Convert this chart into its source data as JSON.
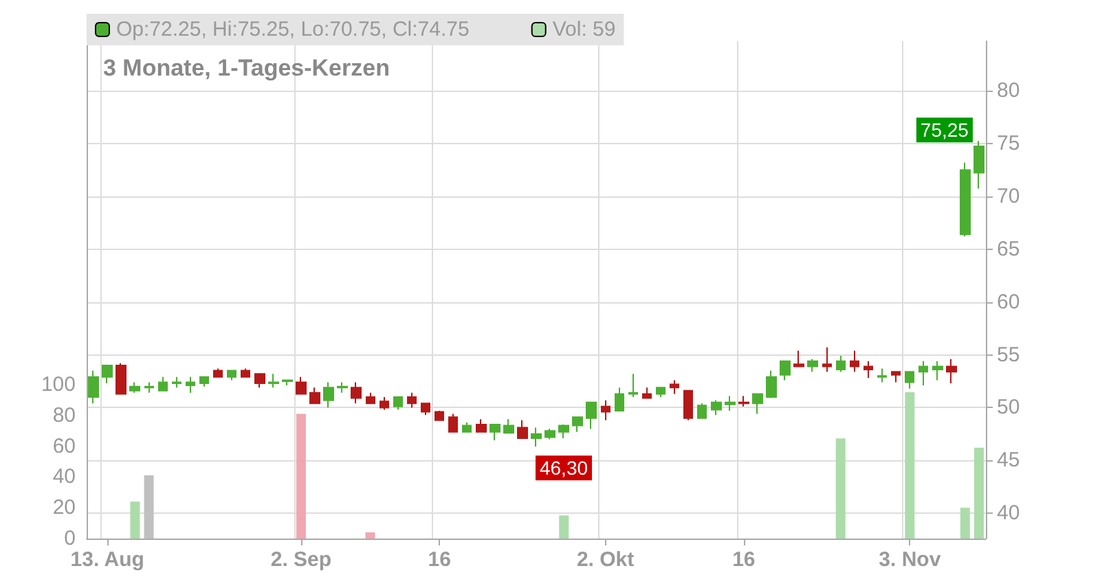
{
  "chart_data": {
    "type": "candlestick",
    "title": "3 Monate, 1-Tages-Kerzen",
    "categories": [
      null,
      "13. Aug",
      null,
      null,
      null,
      null,
      null,
      null,
      null,
      null,
      null,
      null,
      null,
      null,
      null,
      "2. Sep",
      null,
      null,
      null,
      null,
      null,
      null,
      null,
      null,
      null,
      "16",
      null,
      null,
      null,
      null,
      null,
      null,
      null,
      null,
      null,
      null,
      null,
      "2. Okt",
      null,
      null,
      null,
      null,
      null,
      null,
      null,
      null,
      null,
      "16",
      null,
      null,
      null,
      null,
      null,
      null,
      null,
      null,
      null,
      null,
      null,
      "3. Nov",
      null,
      null,
      null,
      null,
      null
    ],
    "series": [
      {
        "name": "Op:72.25, Hi:75.25, Lo:70.75, Cl:74.75",
        "color": "#4caf32",
        "ohlc": [
          [
            51.0,
            53.5,
            50.4,
            52.9
          ],
          [
            52.9,
            54.0,
            52.3,
            54.0
          ],
          [
            54.0,
            54.2,
            51.3,
            51.3
          ],
          [
            51.6,
            52.4,
            51.4,
            52.0
          ],
          [
            51.9,
            52.4,
            51.4,
            52.0
          ],
          [
            51.6,
            52.9,
            51.6,
            52.4
          ],
          [
            52.3,
            52.9,
            51.9,
            52.4
          ],
          [
            52.1,
            52.9,
            51.4,
            52.4
          ],
          [
            52.3,
            52.9,
            52.0,
            52.9
          ],
          [
            53.5,
            53.7,
            52.9,
            52.9
          ],
          [
            52.9,
            53.5,
            52.6,
            53.5
          ],
          [
            53.5,
            53.7,
            52.9,
            52.9
          ],
          [
            53.2,
            53.2,
            51.9,
            52.3
          ],
          [
            52.3,
            53.2,
            51.9,
            52.4
          ],
          [
            52.5,
            52.6,
            52.1,
            52.6
          ],
          [
            52.4,
            52.9,
            51.3,
            51.3
          ],
          [
            51.4,
            51.9,
            50.4,
            50.4
          ],
          [
            50.7,
            52.4,
            50.0,
            51.9
          ],
          [
            51.9,
            52.4,
            51.4,
            52.0
          ],
          [
            51.9,
            52.4,
            50.4,
            50.9
          ],
          [
            51.0,
            51.4,
            50.4,
            50.4
          ],
          [
            50.6,
            51.0,
            49.8,
            50.0
          ],
          [
            50.1,
            51.0,
            49.8,
            51.0
          ],
          [
            51.0,
            51.4,
            50.0,
            50.4
          ],
          [
            50.4,
            50.4,
            49.3,
            49.6
          ],
          [
            49.6,
            49.7,
            48.8,
            48.8
          ],
          [
            49.1,
            49.4,
            47.7,
            47.7
          ],
          [
            47.7,
            48.6,
            47.7,
            48.3
          ],
          [
            48.4,
            48.9,
            47.7,
            47.7
          ],
          [
            47.7,
            48.4,
            46.9,
            48.4
          ],
          [
            47.6,
            48.9,
            47.6,
            48.3
          ],
          [
            48.1,
            48.8,
            47.1,
            47.1
          ],
          [
            47.1,
            48.1,
            46.3,
            47.5
          ],
          [
            47.2,
            48.0,
            47.0,
            47.8
          ],
          [
            47.7,
            48.4,
            47.1,
            48.3
          ],
          [
            48.3,
            49.1,
            47.7,
            49.1
          ],
          [
            49.0,
            50.5,
            48.0,
            50.5
          ],
          [
            50.1,
            50.7,
            48.8,
            49.6
          ],
          [
            49.7,
            51.9,
            49.7,
            51.3
          ],
          [
            51.3,
            53.2,
            51.0,
            51.4
          ],
          [
            51.3,
            51.9,
            50.9,
            50.9
          ],
          [
            51.3,
            51.9,
            51.0,
            51.9
          ],
          [
            52.2,
            52.6,
            51.3,
            51.9
          ],
          [
            51.6,
            51.6,
            48.8,
            49.0
          ],
          [
            49.0,
            50.4,
            49.0,
            50.2
          ],
          [
            49.8,
            50.7,
            49.3,
            50.5
          ],
          [
            50.3,
            51.1,
            49.7,
            50.5
          ],
          [
            50.5,
            51.1,
            50.1,
            50.4
          ],
          [
            50.4,
            51.3,
            49.4,
            51.3
          ],
          [
            51.0,
            53.5,
            50.9,
            52.9
          ],
          [
            53.1,
            54.4,
            52.6,
            54.4
          ],
          [
            54.1,
            55.4,
            53.9,
            53.9
          ],
          [
            53.9,
            54.6,
            53.4,
            54.4
          ],
          [
            54.1,
            55.7,
            53.4,
            53.9
          ],
          [
            53.6,
            54.9,
            53.4,
            54.4
          ],
          [
            54.4,
            55.4,
            53.4,
            53.9
          ],
          [
            53.9,
            54.4,
            52.8,
            53.6
          ],
          [
            52.9,
            53.7,
            52.4,
            53.0
          ],
          [
            53.4,
            53.4,
            52.4,
            53.1
          ],
          [
            52.4,
            53.4,
            51.8,
            53.4
          ],
          [
            53.4,
            54.4,
            52.1,
            53.9
          ],
          [
            53.6,
            54.4,
            52.6,
            53.9
          ],
          [
            53.9,
            54.6,
            52.3,
            53.4
          ],
          [
            66.4,
            73.2,
            66.2,
            72.5
          ],
          [
            72.25,
            75.25,
            70.75,
            74.75
          ]
        ],
        "colors": [
          "#4caf32",
          "#4caf32",
          "#b41818",
          "#4caf32",
          "#4caf32",
          "#4caf32",
          "#4caf32",
          "#4caf32",
          "#4caf32",
          "#b41818",
          "#4caf32",
          "#b41818",
          "#b41818",
          "#4caf32",
          "#4caf32",
          "#b41818",
          "#b41818",
          "#4caf32",
          "#4caf32",
          "#b41818",
          "#b41818",
          "#b41818",
          "#4caf32",
          "#b41818",
          "#b41818",
          "#b41818",
          "#b41818",
          "#4caf32",
          "#b41818",
          "#4caf32",
          "#4caf32",
          "#b41818",
          "#4caf32",
          "#4caf32",
          "#4caf32",
          "#4caf32",
          "#4caf32",
          "#b41818",
          "#4caf32",
          "#4caf32",
          "#b41818",
          "#4caf32",
          "#b41818",
          "#b41818",
          "#4caf32",
          "#4caf32",
          "#4caf32",
          "#b41818",
          "#4caf32",
          "#4caf32",
          "#4caf32",
          "#b41818",
          "#4caf32",
          "#b41818",
          "#4caf32",
          "#b41818",
          "#b41818",
          "#4caf32",
          "#b41818",
          "#4caf32",
          "#4caf32",
          "#4caf32",
          "#b41818",
          "#4caf32",
          "#4caf32"
        ]
      },
      {
        "type": "bar",
        "name": "Vol: 59",
        "axis": "y2",
        "color": "#acdcaa",
        "values": [
          null,
          null,
          null,
          24,
          41,
          null,
          null,
          null,
          null,
          null,
          null,
          null,
          null,
          null,
          null,
          81,
          null,
          null,
          null,
          null,
          4,
          null,
          null,
          null,
          null,
          null,
          null,
          null,
          null,
          null,
          null,
          null,
          null,
          null,
          15,
          null,
          null,
          null,
          null,
          null,
          null,
          null,
          null,
          null,
          null,
          null,
          null,
          null,
          null,
          null,
          null,
          null,
          null,
          null,
          65,
          null,
          null,
          null,
          null,
          95,
          null,
          null,
          null,
          20,
          59
        ],
        "colors": [
          null,
          null,
          null,
          "#acdcaa",
          "#c0c0c0",
          null,
          null,
          null,
          null,
          null,
          null,
          null,
          null,
          null,
          null,
          "#f0a8b0",
          null,
          null,
          null,
          null,
          "#f0a8b0",
          null,
          null,
          null,
          null,
          null,
          null,
          null,
          null,
          null,
          null,
          null,
          null,
          null,
          "#acdcaa",
          null,
          null,
          null,
          null,
          null,
          null,
          null,
          null,
          null,
          null,
          null,
          null,
          null,
          null,
          null,
          null,
          null,
          null,
          null,
          "#acdcaa",
          null,
          null,
          null,
          null,
          "#acdcaa",
          null,
          null,
          null,
          "#acdcaa",
          "#acdcaa"
        ]
      }
    ],
    "ylim": [
      37.6,
      84.7
    ],
    "yticks": [
      40,
      45,
      50,
      55,
      60,
      65,
      70,
      75,
      80
    ],
    "y2lim": [
      0,
      323
    ],
    "y2ticks": [
      0,
      20,
      40,
      60,
      80,
      100
    ],
    "annotations": [
      "46,30",
      "75,25"
    ],
    "grid": true,
    "legend": "top left"
  }
}
